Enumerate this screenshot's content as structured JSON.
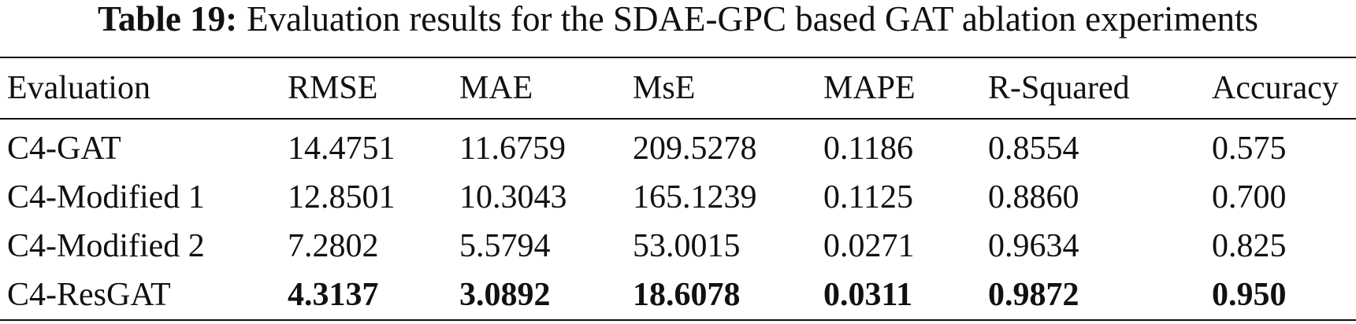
{
  "caption": {
    "label": "Table 19:",
    "text": "Evaluation results for the SDAE-GPC based GAT ablation experiments"
  },
  "table": {
    "header": [
      "Evaluation",
      "RMSE",
      "MAE",
      "MsE",
      "MAPE",
      "R-Squared",
      "Accuracy"
    ],
    "rows": [
      [
        "C4-GAT",
        "14.4751",
        "11.6759",
        "209.5278",
        "0.1186",
        "0.8554",
        "0.575"
      ],
      [
        "C4-Modified 1",
        "12.8501",
        "10.3043",
        "165.1239",
        "0.1125",
        "0.8860",
        "0.700"
      ],
      [
        "C4-Modified 2",
        "7.2802",
        "5.5794",
        "53.0015",
        "0.0271",
        "0.9634",
        "0.825"
      ],
      [
        "C4-ResGAT",
        "4.3137",
        "3.0892",
        "18.6078",
        "0.0311",
        "0.9872",
        "0.950"
      ]
    ]
  }
}
